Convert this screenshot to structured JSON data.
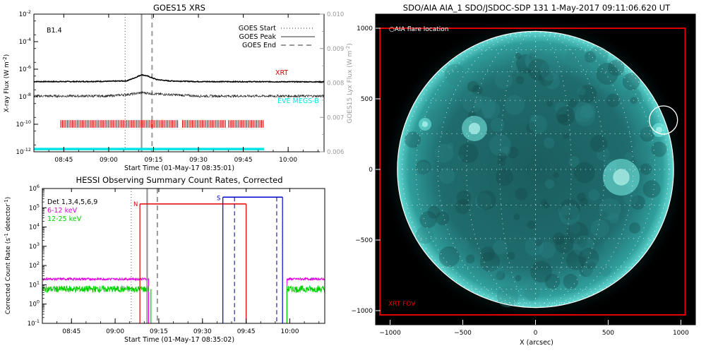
{
  "chart_data": [
    {
      "type": "line",
      "title": "GOES15 XRS",
      "xlabel": "Start Time (01-May-17 08:35:01)",
      "ylabel": "X-ray Flux (W m",
      "ylabel_sup": "-2",
      "ylabel_tail": ")",
      "y2label": "GOES15 Lyx Flux (W m",
      "y2label_sup": "-2",
      "y2label_tail": ")",
      "x_ticks": [
        "08:45",
        "09:00",
        "09:15",
        "09:30",
        "09:45",
        "10:00"
      ],
      "x_tick_minutes": [
        45,
        60,
        75,
        90,
        105,
        120
      ],
      "xlim_minutes_after_0800": [
        35.0,
        132.0
      ],
      "y_log_range": [
        -12,
        -2
      ],
      "y_ticks": [
        "10",
        "10",
        "10",
        "10",
        "10",
        "10"
      ],
      "y_tick_exp": [
        "-2",
        "-4",
        "-6",
        "-8",
        "-10",
        "-12"
      ],
      "y2_ticks": [
        "0.010",
        "0.009",
        "0.008",
        "0.007",
        "0.006"
      ],
      "y2lim": [
        0.006,
        0.01
      ],
      "class_label": "B1.4",
      "legend": [
        {
          "label": "GOES Start",
          "style": "dotted"
        },
        {
          "label": "GOES Peak",
          "style": "solid"
        },
        {
          "label": "GOES End",
          "style": "dashed"
        }
      ],
      "event_lines": {
        "start": 65.5,
        "peak": 71.0,
        "end": 74.5
      },
      "series": [
        {
          "name": "XRT",
          "color": "#d40000"
        },
        {
          "name": "EVE MEGS-B",
          "color": "#00e5e5"
        }
      ],
      "series_curves": {
        "black_log": [
          [
            35,
            -6.9
          ],
          [
            50,
            -6.9
          ],
          [
            60,
            -6.88
          ],
          [
            66,
            -6.85
          ],
          [
            69,
            -6.6
          ],
          [
            71,
            -6.4
          ],
          [
            73,
            -6.5
          ],
          [
            76,
            -6.75
          ],
          [
            80,
            -6.85
          ],
          [
            90,
            -6.9
          ],
          [
            132,
            -6.92
          ]
        ],
        "dotted_log": [
          [
            35,
            -7.95
          ],
          [
            60,
            -7.95
          ],
          [
            68,
            -7.8
          ],
          [
            71,
            -7.7
          ],
          [
            76,
            -7.8
          ],
          [
            90,
            -7.95
          ],
          [
            132,
            -7.95
          ]
        ],
        "cyan_log": -11.8
      },
      "xrt_obs_minutes": [
        [
          44.0,
          112.0
        ]
      ]
    },
    {
      "type": "line",
      "title": "HESSI Observing Summary Count Rates, Corrected",
      "xlabel": "Start Time (01-May-17 08:35:02)",
      "ylabel": "Corrected Count Rate (s",
      "ylabel_sup": "-1",
      "ylabel_tail": " detector",
      "ylabel_sup2": "-1",
      "ylabel_tail2": ")",
      "x_ticks": [
        "08:45",
        "09:00",
        "09:15",
        "09:30",
        "09:45",
        "10:00"
      ],
      "x_tick_minutes": [
        45,
        60,
        75,
        90,
        105,
        120
      ],
      "xlim_minutes_after_0800": [
        35.0,
        132.0
      ],
      "y_log_range": [
        -1,
        6
      ],
      "y_ticks": [
        "10",
        "10",
        "10",
        "10",
        "10",
        "10",
        "10",
        "10"
      ],
      "y_tick_exp": [
        "6",
        "5",
        "4",
        "3",
        "2",
        "1",
        "0",
        "-1"
      ],
      "legend": [
        {
          "label": "Det 1,3,4,5,6,9",
          "color": "#000000"
        },
        {
          "label": "6-12 keV",
          "color": "#e000e0"
        },
        {
          "label": "12-25 keV",
          "color": "#00d000"
        }
      ],
      "series": [
        {
          "name": "6-12 keV",
          "color": "#e000e0",
          "level_before": 20,
          "level_after": 20
        },
        {
          "name": "12-25 keV",
          "color": "#00d000",
          "level_before": 6,
          "level_after": 6
        }
      ],
      "gap_minutes": [
        71.5,
        119.0
      ],
      "night_label": "N",
      "saa_label": "S",
      "night_span": [
        68.5,
        105.0
      ],
      "saa_span": [
        97.0,
        117.5
      ],
      "event_lines": {
        "start": 65.5,
        "peak": 71.0,
        "end": 74.5
      },
      "saa_dashed": [
        101.0,
        115.5
      ]
    },
    {
      "type": "image",
      "title": "SDO/AIA AIA_1 SDO/JSDOC-SDP 131   1-May-2017 09:11:06.620 UT",
      "xlabel": "X (arcsec)",
      "x_ticks": [
        "−1000",
        "−500",
        "0",
        "500",
        "1000"
      ],
      "x_tick_values": [
        -1000,
        -500,
        0,
        500,
        1000
      ],
      "y_ticks": [
        "1000",
        "500",
        "0",
        "−500",
        "−1000"
      ],
      "y_tick_values": [
        1000,
        500,
        0,
        -500,
        -1000
      ],
      "xlim": [
        -1100,
        1100
      ],
      "ylim": [
        -1100,
        1100
      ],
      "solar_radius_arcsec": 950,
      "legend_label": "AIA flare location",
      "fov_label": "XRT FOV",
      "fov": [
        -1070,
        1030,
        -1030,
        1000
      ],
      "flare_location": [
        880,
        350
      ],
      "colors": {
        "xrt": "#e00000",
        "disk": "#2a8f8f",
        "limb": "#3fe0d8",
        "sky": "#000000"
      }
    }
  ]
}
